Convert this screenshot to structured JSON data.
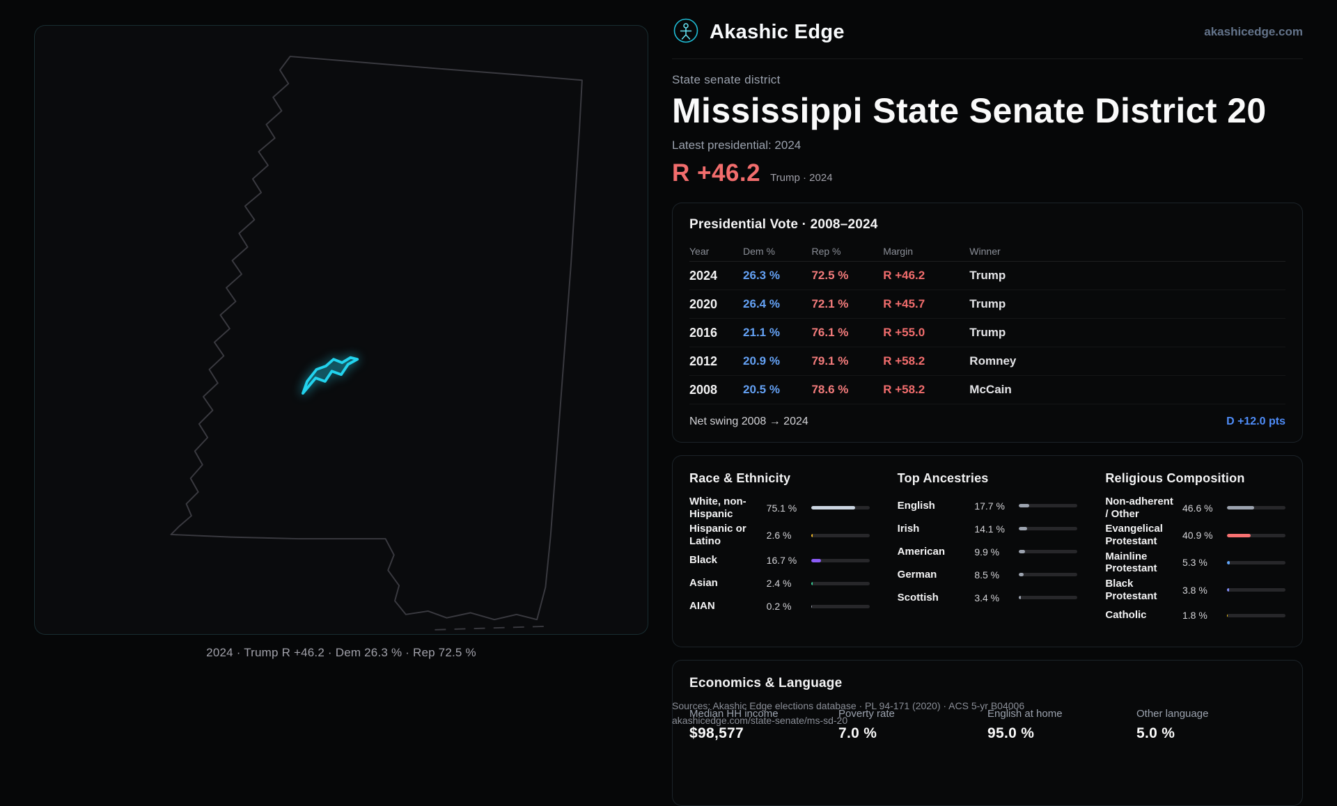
{
  "colors": {
    "accent_cyan": "#22d3ee",
    "dem_blue": "#64a1f4",
    "rep_red": "#f26d6d",
    "swing_blue": "#4f8df9",
    "muted_gray": "#9ca3af"
  },
  "header": {
    "brand": "Akashic Edge",
    "site_link": "akashicedge.com"
  },
  "map": {
    "caption": "2024 · Trump R +46.2 · Dem 26.3 % · Rep 72.5 %"
  },
  "hero": {
    "kicker": "State senate district",
    "title": "Mississippi State Senate District 20",
    "latest_label": "Latest presidential: 2024",
    "margin_value": "R +46.2",
    "margin_context": "Trump · 2024"
  },
  "presidential": {
    "title": "Presidential Vote · 2008–2024",
    "columns": [
      "Year",
      "Dem %",
      "Rep %",
      "Margin",
      "Winner"
    ],
    "rows": [
      {
        "year": "2024",
        "dem": "26.3 %",
        "rep": "72.5 %",
        "margin": "R +46.2",
        "winner": "Trump"
      },
      {
        "year": "2020",
        "dem": "26.4 %",
        "rep": "72.1 %",
        "margin": "R +45.7",
        "winner": "Trump"
      },
      {
        "year": "2016",
        "dem": "21.1 %",
        "rep": "76.1 %",
        "margin": "R +55.0",
        "winner": "Trump"
      },
      {
        "year": "2012",
        "dem": "20.9 %",
        "rep": "79.1 %",
        "margin": "R +58.2",
        "winner": "Romney"
      },
      {
        "year": "2008",
        "dem": "20.5 %",
        "rep": "78.6 %",
        "margin": "R +58.2",
        "winner": "McCain"
      }
    ],
    "swing_label": "Net swing 2008 → 2024",
    "swing_value": "D +12.0 pts"
  },
  "demographics": {
    "race": {
      "title": "Race & Ethnicity",
      "rows": [
        {
          "label": "White, non-Hispanic",
          "value": "75.1 %",
          "pct": 75.1,
          "color": "#cbd5e1"
        },
        {
          "label": "Hispanic or Latino",
          "value": "2.6 %",
          "pct": 2.6,
          "color": "#fbbf24"
        },
        {
          "label": "Black",
          "value": "16.7 %",
          "pct": 16.7,
          "color": "#8b5cf6"
        },
        {
          "label": "Asian",
          "value": "2.4 %",
          "pct": 2.4,
          "color": "#34d399"
        },
        {
          "label": "AIAN",
          "value": "0.2 %",
          "pct": 0.2,
          "color": "#9ca3af"
        }
      ]
    },
    "ancestries": {
      "title": "Top Ancestries",
      "rows": [
        {
          "label": "English",
          "value": "17.7 %",
          "pct": 17.7,
          "color": "#9ca3af"
        },
        {
          "label": "Irish",
          "value": "14.1 %",
          "pct": 14.1,
          "color": "#9ca3af"
        },
        {
          "label": "American",
          "value": "9.9 %",
          "pct": 9.9,
          "color": "#9ca3af"
        },
        {
          "label": "German",
          "value": "8.5 %",
          "pct": 8.5,
          "color": "#9ca3af"
        },
        {
          "label": "Scottish",
          "value": "3.4 %",
          "pct": 3.4,
          "color": "#9ca3af"
        }
      ]
    },
    "religion": {
      "title": "Religious Composition",
      "rows": [
        {
          "label": "Non-adherent / Other",
          "value": "46.6 %",
          "pct": 46.6,
          "color": "#9ca3af"
        },
        {
          "label": "Evangelical Protestant",
          "value": "40.9 %",
          "pct": 40.9,
          "color": "#f87171"
        },
        {
          "label": "Mainline Protestant",
          "value": "5.3 %",
          "pct": 5.3,
          "color": "#60a5fa"
        },
        {
          "label": "Black Protestant",
          "value": "3.8 %",
          "pct": 3.8,
          "color": "#818cf8"
        },
        {
          "label": "Catholic",
          "value": "1.8 %",
          "pct": 1.8,
          "color": "#facc15"
        }
      ]
    }
  },
  "economics": {
    "title": "Economics & Language",
    "stats": [
      {
        "label": "Median HH income",
        "value": "$98,577"
      },
      {
        "label": "Poverty rate",
        "value": "7.0 %"
      },
      {
        "label": "English at home",
        "value": "95.0 %"
      },
      {
        "label": "Other language",
        "value": "5.0 %"
      }
    ]
  },
  "footer": {
    "sources": "Sources: Akashic Edge elections database · PL 94-171 (2020) · ACS 5-yr B04006",
    "permalink": "akashicedge.com/state-senate/ms-sd-20"
  }
}
